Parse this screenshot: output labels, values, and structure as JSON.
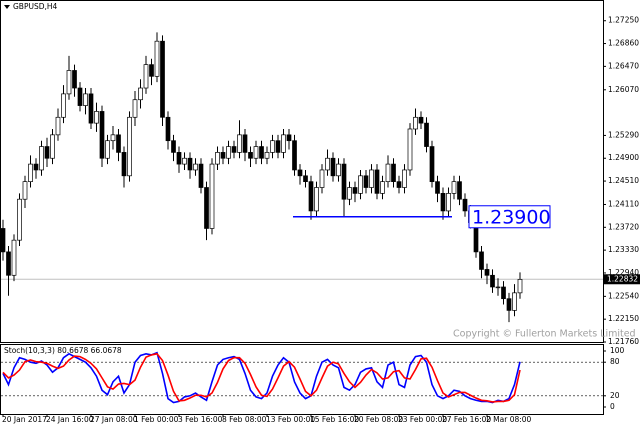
{
  "chart_data": {
    "type": "candlestick",
    "title": "GBPUSD,H4",
    "copyright": "Copyright © Fullerton Markets Limited",
    "ylim": [
      1.2176,
      1.2757
    ],
    "yticks": [
      {
        "value": 1.2725,
        "label": "1.27250"
      },
      {
        "value": 1.2686,
        "label": "1.26860"
      },
      {
        "value": 1.2647,
        "label": "1.26470"
      },
      {
        "value": 1.2607,
        "label": "1.26070"
      },
      {
        "value": 1.2529,
        "label": "1.25290"
      },
      {
        "value": 1.249,
        "label": "1.24900"
      },
      {
        "value": 1.2451,
        "label": "1.24510"
      },
      {
        "value": 1.2411,
        "label": "1.24110"
      },
      {
        "value": 1.2372,
        "label": "1.23720"
      },
      {
        "value": 1.2333,
        "label": "1.23330"
      },
      {
        "value": 1.2294,
        "label": "1.22940"
      },
      {
        "value": 1.2254,
        "label": "1.22540"
      },
      {
        "value": 1.2215,
        "label": "1.22150"
      },
      {
        "value": 1.2176,
        "label": "1.21760"
      }
    ],
    "current_price": {
      "value": 1.22832,
      "label": "1.22832"
    },
    "level_line": {
      "value": 1.239,
      "label": "1.23900",
      "color": "#0000ff"
    },
    "categories": [
      "20 Jan 2017",
      null,
      null,
      null,
      null,
      null,
      null,
      null,
      "24 Jan 16:00",
      null,
      null,
      null,
      null,
      null,
      null,
      null,
      "27 Jan 08:00",
      null,
      null,
      null,
      null,
      null,
      null,
      null,
      "1 Feb 00:00",
      null,
      null,
      null,
      null,
      null,
      null,
      null,
      "3 Feb 16:00",
      null,
      null,
      null,
      null,
      null,
      null,
      null,
      "8 Feb 08:00",
      null,
      null,
      null,
      null,
      null,
      null,
      null,
      "13 Feb 00:00",
      null,
      null,
      null,
      null,
      null,
      null,
      null,
      "15 Feb 16:00",
      null,
      null,
      null,
      null,
      null,
      null,
      null,
      "20 Feb 08:00",
      null,
      null,
      null,
      null,
      null,
      null,
      null,
      "23 Feb 00:00",
      null,
      null,
      null,
      null,
      null,
      null,
      null,
      "27 Feb 16:00",
      null,
      null,
      null,
      null,
      null,
      null,
      null,
      "2 Mar 08:00",
      null,
      null,
      null,
      null,
      null,
      null
    ],
    "open": [
      1.237,
      1.233,
      1.229,
      1.235,
      1.242,
      1.245,
      1.248,
      1.247,
      1.251,
      1.249,
      1.253,
      1.256,
      1.26,
      1.264,
      1.261,
      1.258,
      1.26,
      1.255,
      1.257,
      1.249,
      1.252,
      1.253,
      1.25,
      1.246,
      1.256,
      1.259,
      1.261,
      1.265,
      1.263,
      1.269,
      1.256,
      1.252,
      1.25,
      1.248,
      1.249,
      1.247,
      1.248,
      1.244,
      1.237,
      1.248,
      1.25,
      1.249,
      1.251,
      1.25,
      1.253,
      1.25,
      1.249,
      1.251,
      1.249,
      1.25,
      1.252,
      1.25,
      1.253,
      1.252,
      1.247,
      1.246,
      1.245,
      1.24,
      1.244,
      1.247,
      1.249,
      1.246,
      1.248,
      1.242,
      1.244,
      1.243,
      1.246,
      1.244,
      1.247,
      1.243,
      1.245,
      1.248,
      1.245,
      1.244,
      1.247,
      1.254,
      1.256,
      1.255,
      1.251,
      1.245,
      1.243,
      1.24,
      1.243,
      1.245,
      1.242,
      1.24,
      1.238,
      1.233,
      1.23,
      1.229,
      1.227,
      1.227,
      1.225,
      1.223,
      1.226
    ],
    "high": [
      1.2385,
      1.234,
      1.236,
      1.243,
      1.246,
      1.2495,
      1.249,
      1.252,
      1.2525,
      1.254,
      1.2575,
      1.2615,
      1.2665,
      1.265,
      1.262,
      1.261,
      1.261,
      1.2585,
      1.258,
      1.253,
      1.2545,
      1.254,
      1.251,
      1.257,
      1.2605,
      1.2625,
      1.2665,
      1.266,
      1.2705,
      1.27,
      1.257,
      1.253,
      1.251,
      1.25,
      1.25,
      1.249,
      1.249,
      1.245,
      1.249,
      1.251,
      1.251,
      1.252,
      1.252,
      1.2555,
      1.254,
      1.251,
      1.252,
      1.252,
      1.251,
      1.253,
      1.253,
      1.254,
      1.254,
      1.253,
      1.248,
      1.247,
      1.246,
      1.245,
      1.248,
      1.2505,
      1.25,
      1.249,
      1.249,
      1.245,
      1.245,
      1.247,
      1.247,
      1.248,
      1.248,
      1.246,
      1.2495,
      1.249,
      1.246,
      1.248,
      1.255,
      1.2575,
      1.257,
      1.256,
      1.252,
      1.246,
      1.244,
      1.244,
      1.246,
      1.246,
      1.243,
      1.241,
      1.239,
      1.234,
      1.231,
      1.23,
      1.2285,
      1.228,
      1.226,
      1.2275,
      1.2295
    ],
    "low": [
      1.2315,
      1.2255,
      1.228,
      1.234,
      1.2405,
      1.244,
      1.2455,
      1.246,
      1.2475,
      1.248,
      1.252,
      1.255,
      1.259,
      1.2595,
      1.257,
      1.2565,
      1.254,
      1.2535,
      1.2475,
      1.248,
      1.2505,
      1.2485,
      1.244,
      1.245,
      1.2545,
      1.2575,
      1.26,
      1.2615,
      1.262,
      1.2545,
      1.2505,
      1.2485,
      1.2465,
      1.247,
      1.2455,
      1.246,
      1.243,
      1.235,
      1.236,
      1.247,
      1.248,
      1.248,
      1.249,
      1.249,
      1.2485,
      1.2475,
      1.248,
      1.248,
      1.248,
      1.249,
      1.249,
      1.249,
      1.2505,
      1.246,
      1.2445,
      1.244,
      1.2385,
      1.239,
      1.243,
      1.246,
      1.245,
      1.245,
      1.239,
      1.241,
      1.2415,
      1.242,
      1.243,
      1.243,
      1.242,
      1.242,
      1.244,
      1.244,
      1.243,
      1.243,
      1.246,
      1.253,
      1.254,
      1.25,
      1.244,
      1.2415,
      1.2385,
      1.239,
      1.242,
      1.241,
      1.239,
      1.237,
      1.232,
      1.2285,
      1.2275,
      1.226,
      1.2255,
      1.224,
      1.221,
      1.222,
      1.225
    ],
    "close": [
      1.233,
      1.229,
      1.235,
      1.242,
      1.245,
      1.248,
      1.247,
      1.251,
      1.249,
      1.253,
      1.256,
      1.26,
      1.264,
      1.261,
      1.258,
      1.26,
      1.255,
      1.257,
      1.249,
      1.252,
      1.253,
      1.25,
      1.246,
      1.256,
      1.259,
      1.261,
      1.265,
      1.263,
      1.269,
      1.256,
      1.252,
      1.25,
      1.248,
      1.249,
      1.247,
      1.248,
      1.244,
      1.237,
      1.248,
      1.25,
      1.249,
      1.251,
      1.25,
      1.253,
      1.25,
      1.249,
      1.251,
      1.249,
      1.25,
      1.252,
      1.25,
      1.253,
      1.252,
      1.247,
      1.246,
      1.245,
      1.24,
      1.244,
      1.247,
      1.249,
      1.246,
      1.248,
      1.242,
      1.244,
      1.243,
      1.246,
      1.244,
      1.247,
      1.243,
      1.245,
      1.248,
      1.245,
      1.244,
      1.247,
      1.254,
      1.256,
      1.255,
      1.251,
      1.245,
      1.243,
      1.24,
      1.243,
      1.245,
      1.242,
      1.24,
      1.238,
      1.233,
      1.23,
      1.229,
      1.227,
      1.227,
      1.225,
      1.223,
      1.226,
      1.2283
    ],
    "indicator": {
      "label": "Stoch(10,3,3) 80.6678 66.0678",
      "ylim": [
        0,
        100
      ],
      "yticks": [
        0,
        20,
        80,
        100
      ],
      "levels": [
        20,
        80
      ],
      "series": [
        {
          "color": "#0000ff",
          "values": [
            60,
            40,
            70,
            88,
            85,
            80,
            78,
            82,
            75,
            62,
            70,
            88,
            95,
            90,
            85,
            80,
            70,
            55,
            30,
            22,
            45,
            55,
            25,
            40,
            80,
            92,
            95,
            93,
            97,
            60,
            15,
            8,
            10,
            18,
            20,
            25,
            18,
            12,
            45,
            75,
            85,
            88,
            90,
            85,
            60,
            30,
            18,
            15,
            25,
            55,
            75,
            88,
            80,
            45,
            25,
            15,
            20,
            55,
            80,
            85,
            75,
            70,
            35,
            30,
            40,
            62,
            68,
            70,
            45,
            35,
            75,
            80,
            40,
            35,
            75,
            90,
            92,
            80,
            40,
            20,
            15,
            20,
            30,
            28,
            20,
            15,
            12,
            10,
            10,
            8,
            12,
            10,
            15,
            40,
            80.6678
          ]
        },
        {
          "color": "#ff0000",
          "values": [
            62,
            52,
            57,
            66,
            81,
            84,
            81,
            80,
            78,
            73,
            69,
            73,
            84,
            91,
            90,
            85,
            78,
            68,
            52,
            36,
            32,
            41,
            42,
            40,
            48,
            71,
            89,
            93,
            95,
            83,
            57,
            28,
            11,
            12,
            16,
            21,
            21,
            18,
            25,
            44,
            68,
            83,
            88,
            88,
            78,
            58,
            36,
            21,
            19,
            32,
            52,
            73,
            81,
            71,
            50,
            28,
            20,
            30,
            52,
            73,
            80,
            77,
            60,
            45,
            35,
            44,
            57,
            67,
            61,
            50,
            52,
            63,
            65,
            52,
            50,
            67,
            86,
            87,
            71,
            47,
            25,
            18,
            22,
            26,
            26,
            21,
            16,
            12,
            11,
            9,
            10,
            10,
            12,
            22,
            66.0678
          ]
        }
      ]
    }
  }
}
